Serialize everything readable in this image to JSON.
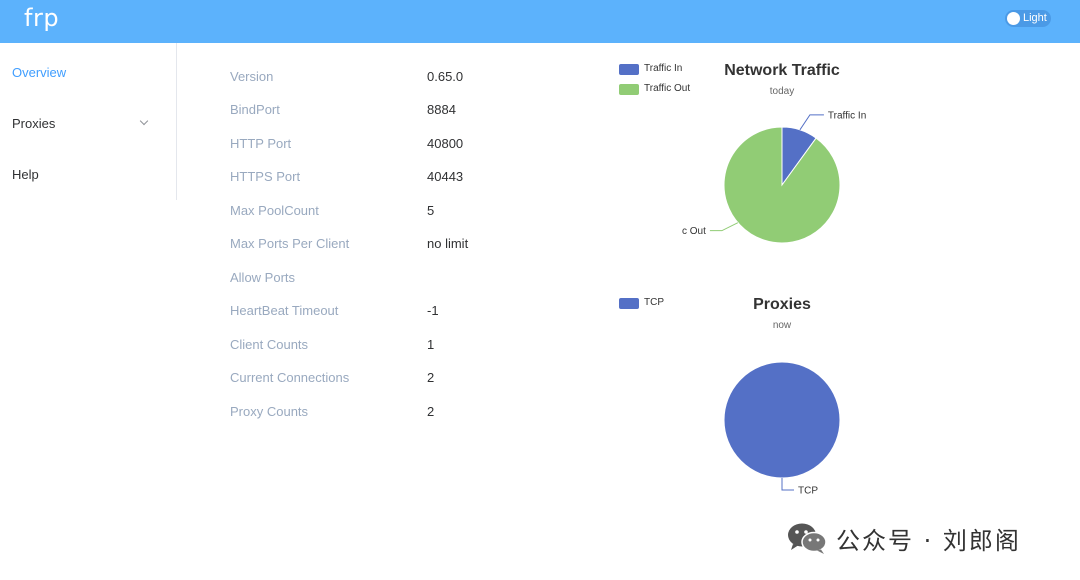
{
  "app": {
    "brand": "frp"
  },
  "theme_toggle": {
    "label": "Light"
  },
  "sidebar": {
    "items": [
      {
        "label": "Overview",
        "active": true
      },
      {
        "label": "Proxies",
        "has_submenu": true
      },
      {
        "label": "Help"
      }
    ]
  },
  "server_info": [
    {
      "label": "Version",
      "value": "0.65.0"
    },
    {
      "label": "BindPort",
      "value": "8884"
    },
    {
      "label": "HTTP Port",
      "value": "40800"
    },
    {
      "label": "HTTPS Port",
      "value": "40443"
    },
    {
      "label": "Max PoolCount",
      "value": "5"
    },
    {
      "label": "Max Ports Per Client",
      "value": "no limit"
    },
    {
      "label": "Allow Ports",
      "value": ""
    },
    {
      "label": "HeartBeat Timeout",
      "value": "-1"
    },
    {
      "label": "Client Counts",
      "value": "1"
    },
    {
      "label": "Current Connections",
      "value": "2"
    },
    {
      "label": "Proxy Counts",
      "value": "2"
    }
  ],
  "chart_data": [
    {
      "type": "pie",
      "title": "Network Traffic",
      "subtitle": "today",
      "legend": [
        "Traffic In",
        "Traffic Out"
      ],
      "legend_position": "top-left",
      "slices": [
        {
          "name": "Traffic In",
          "value": 10,
          "color": "#5470c6"
        },
        {
          "name": "Traffic Out",
          "value": 90,
          "color": "#91cc75"
        }
      ]
    },
    {
      "type": "pie",
      "title": "Proxies",
      "subtitle": "now",
      "legend": [
        "TCP"
      ],
      "legend_position": "top-left",
      "slices": [
        {
          "name": "TCP",
          "value": 2,
          "color": "#5470c6"
        }
      ]
    }
  ],
  "watermark": {
    "text": "公众号 · 刘郎阁"
  }
}
